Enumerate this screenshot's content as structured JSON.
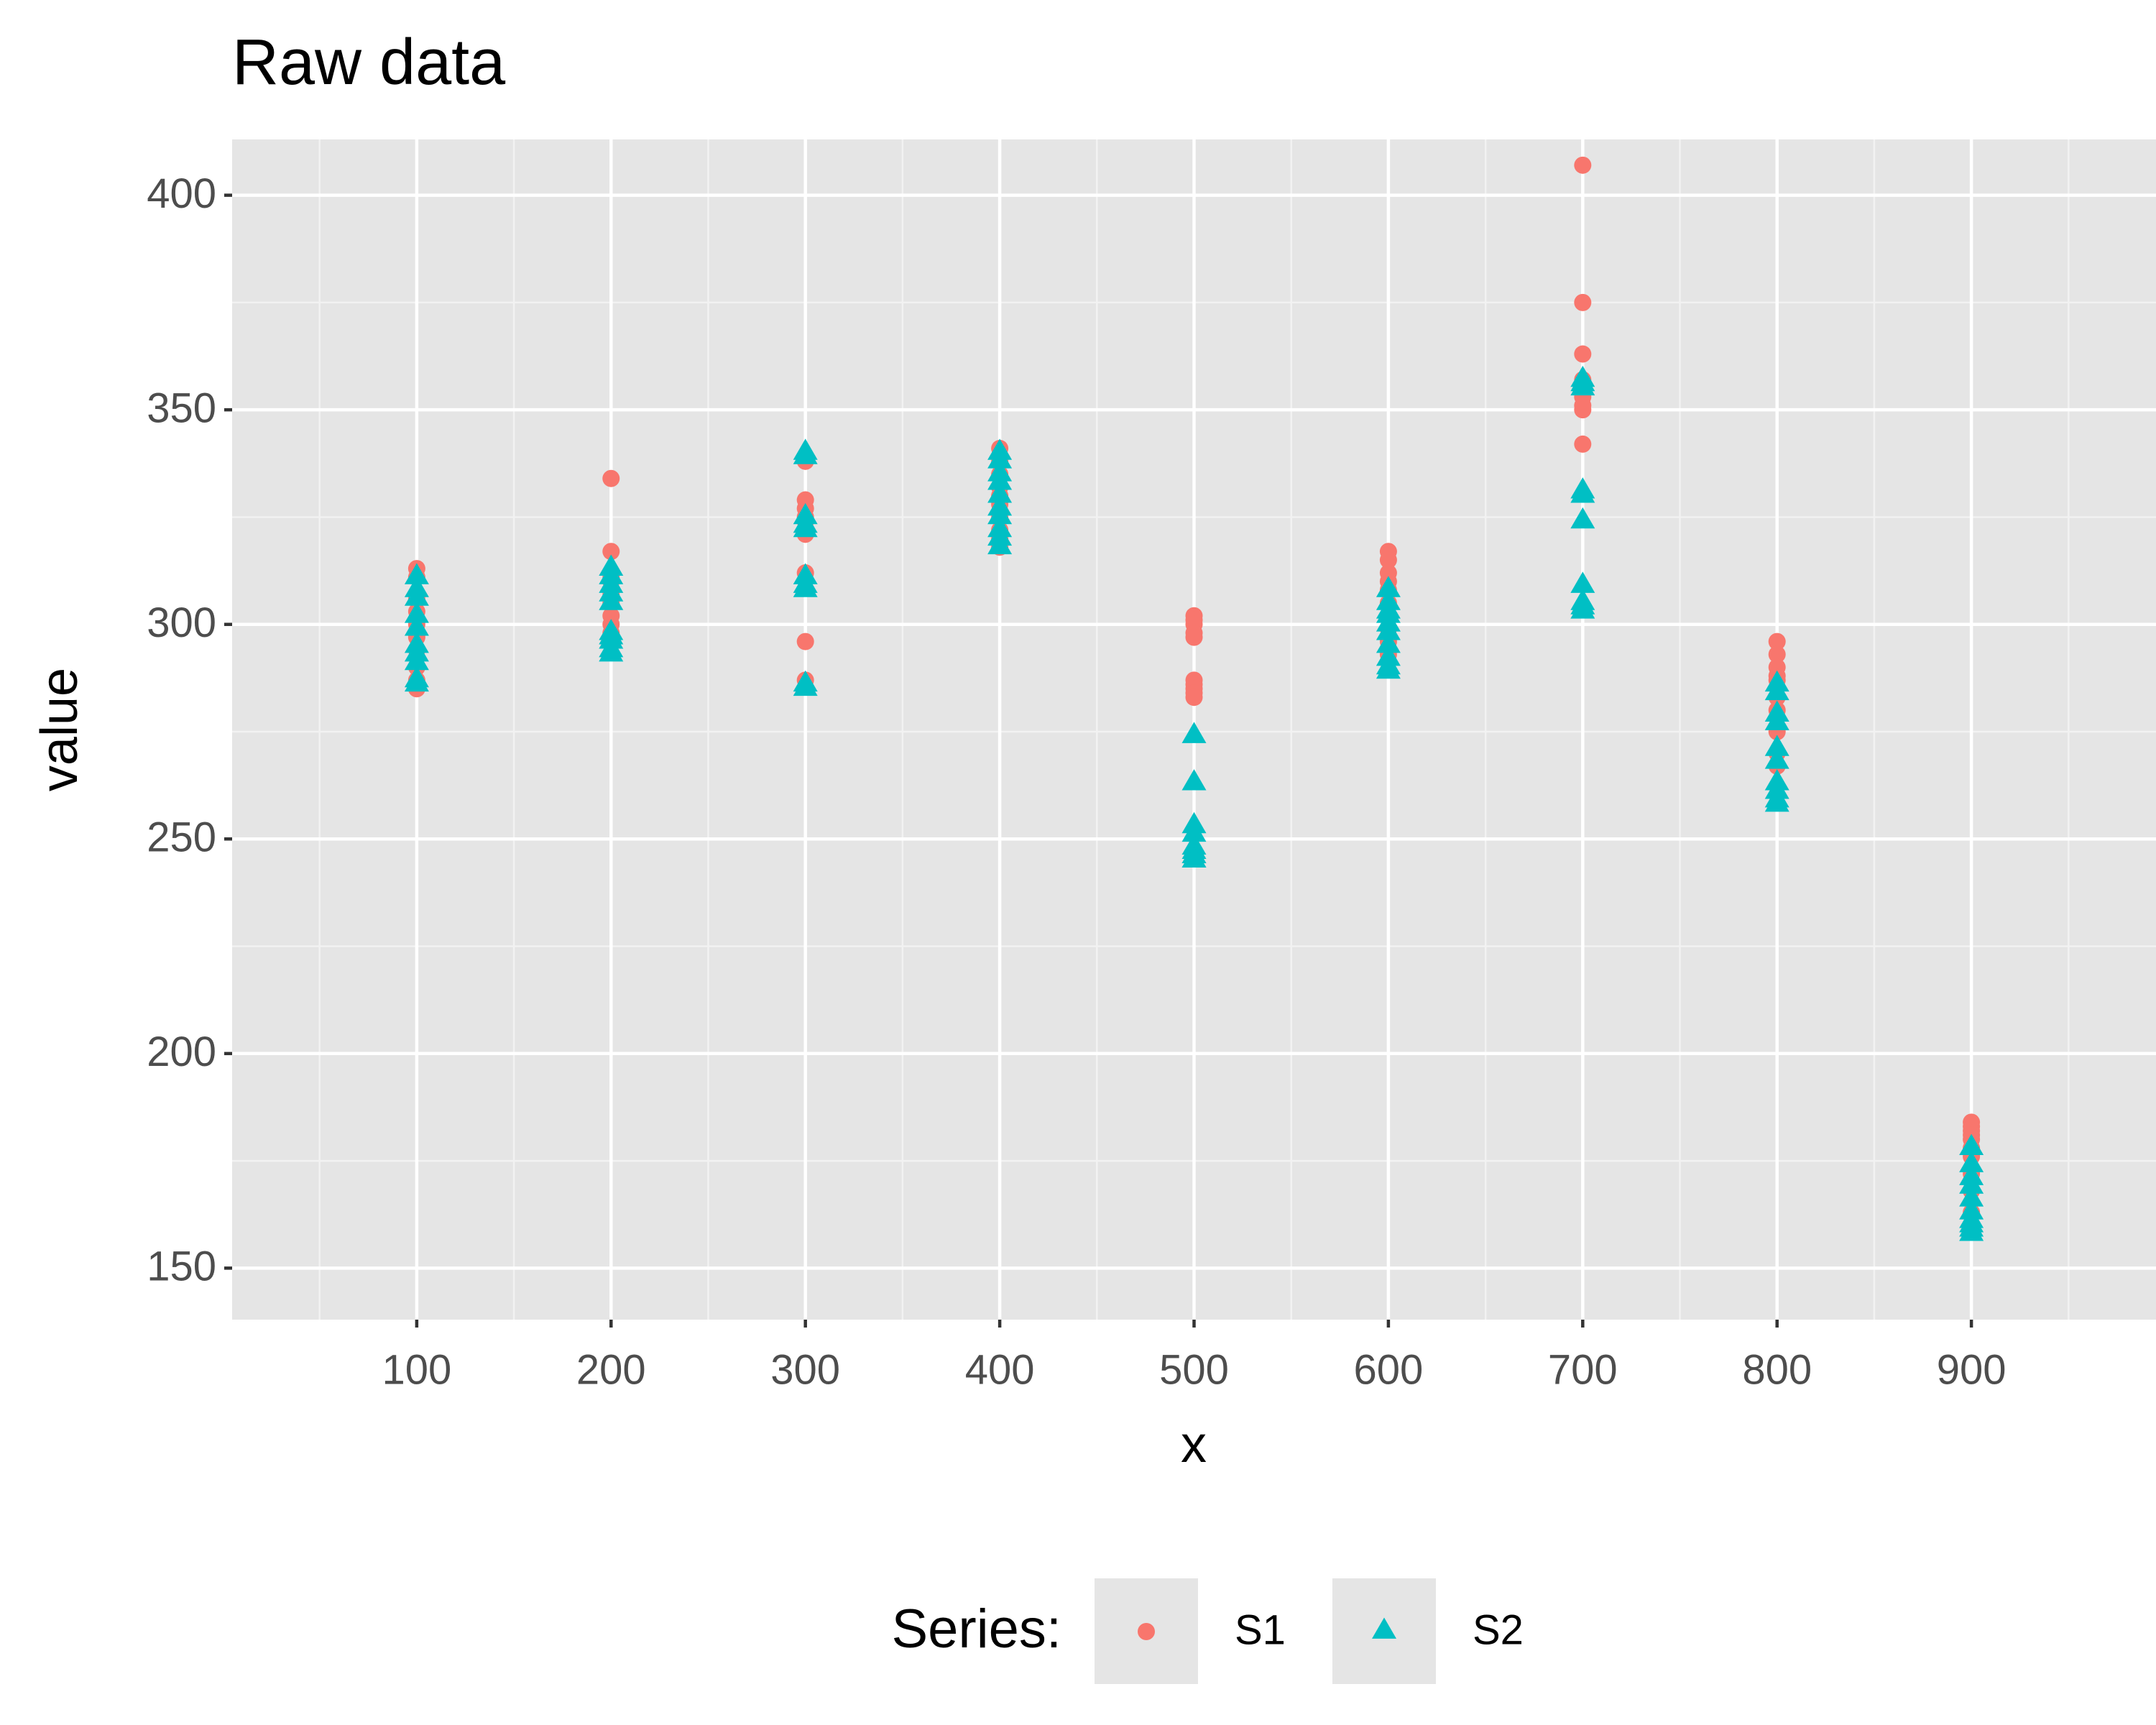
{
  "chart_data": {
    "type": "scatter",
    "title": "Raw data",
    "x_label": "x",
    "y_label": "value",
    "legend_title": "Series:",
    "legend_position": "bottom",
    "grid": true,
    "xlim": [
      5,
      995
    ],
    "ylim": [
      138,
      413
    ],
    "xticks": [
      100,
      200,
      300,
      400,
      500,
      600,
      700,
      800,
      900
    ],
    "yticks": [
      150,
      200,
      250,
      300,
      350,
      400
    ],
    "x": [
      100,
      100,
      100,
      100,
      100,
      100,
      100,
      100,
      100,
      100,
      200,
      200,
      200,
      200,
      200,
      200,
      200,
      200,
      200,
      200,
      300,
      300,
      300,
      300,
      300,
      300,
      300,
      300,
      300,
      300,
      400,
      400,
      400,
      400,
      400,
      400,
      400,
      400,
      400,
      400,
      500,
      500,
      500,
      500,
      500,
      500,
      500,
      500,
      500,
      500,
      600,
      600,
      600,
      600,
      600,
      600,
      600,
      600,
      600,
      600,
      700,
      700,
      700,
      700,
      700,
      700,
      700,
      700,
      700,
      700,
      800,
      800,
      800,
      800,
      800,
      800,
      800,
      800,
      800,
      800,
      900,
      900,
      900,
      900,
      900,
      900,
      900,
      900,
      900,
      900
    ],
    "series": [
      {
        "name": "S1",
        "color": "#f8766d",
        "shape": "circle",
        "values": [
          313,
          311,
          306,
          303,
          300,
          297,
          294,
          290,
          287,
          285,
          334,
          317,
          310,
          307,
          305,
          302,
          300,
          298,
          311,
          296,
          338,
          329,
          327,
          325,
          322,
          321,
          312,
          296,
          287,
          324,
          341,
          338,
          335,
          332,
          330,
          328,
          325,
          322,
          320,
          318,
          302,
          301,
          300,
          298,
          297,
          287,
          286,
          285,
          284,
          283,
          317,
          315,
          312,
          310,
          308,
          305,
          302,
          299,
          296,
          293,
          407,
          375,
          363,
          357,
          355,
          353,
          351,
          350,
          342,
          356,
          296,
          293,
          290,
          288,
          287,
          283,
          280,
          275,
          270,
          267,
          184,
          183,
          182,
          181,
          180,
          178,
          176,
          172,
          168,
          163
        ]
      },
      {
        "name": "S2",
        "color": "#00bfc4",
        "shape": "triangle",
        "values": [
          311,
          308,
          306,
          302,
          299,
          295,
          293,
          291,
          287,
          286,
          313,
          311,
          309,
          307,
          305,
          298,
          297,
          296,
          294,
          293,
          340,
          339,
          325,
          323,
          322,
          311,
          309,
          308,
          286,
          285,
          340,
          338,
          335,
          333,
          330,
          327,
          325,
          322,
          320,
          318,
          274,
          263,
          253,
          251,
          248,
          247,
          246,
          246,
          245,
          245,
          308,
          305,
          303,
          302,
          300,
          298,
          295,
          292,
          290,
          289,
          357,
          355,
          331,
          330,
          324,
          309,
          305,
          304,
          303,
          356,
          286,
          284,
          279,
          277,
          271,
          268,
          263,
          261,
          259,
          258,
          178,
          174,
          171,
          169,
          166,
          163,
          161,
          160,
          159,
          158
        ]
      }
    ]
  }
}
